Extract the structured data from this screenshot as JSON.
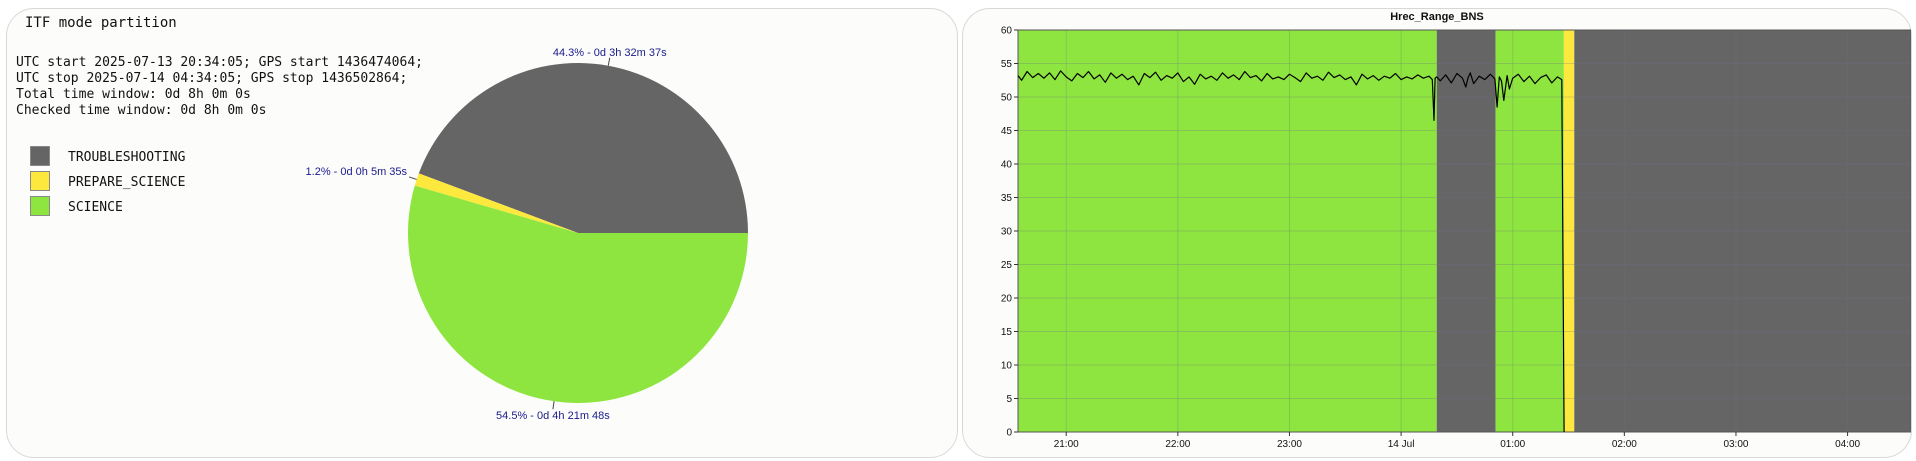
{
  "left_panel": {
    "title": "ITF mode partition",
    "info_lines": [
      "UTC start 2025-07-13 20:34:05; GPS start 1436474064;",
      "UTC stop 2025-07-14 04:34:05; GPS stop 1436502864;",
      "Total time window: 0d 8h 0m 0s",
      "Checked time window: 0d 8h 0m 0s"
    ],
    "legend": [
      {
        "label": "TROUBLESHOOTING",
        "color": "#666566"
      },
      {
        "label": "PREPARE_SCIENCE",
        "color": "#fde93d"
      },
      {
        "label": "SCIENCE",
        "color": "#8ee53f"
      }
    ]
  },
  "right_panel": {
    "title": "Hrec_Range_BNS"
  },
  "colors": {
    "troubleshooting": "#666566",
    "prepare_science": "#fde93d",
    "science": "#8ee53f",
    "slice_label": "#1a1a8c",
    "line": "#000000"
  },
  "chart_data": [
    {
      "type": "pie",
      "title": "ITF mode partition",
      "start_angle_deg": 0,
      "direction": "counterclockwise",
      "slices": [
        {
          "name": "TROUBLESHOOTING",
          "value": 44.3,
          "label": "44.3% - 0d 3h 32m 37s",
          "color": "#666566"
        },
        {
          "name": "PREPARE_SCIENCE",
          "value": 1.2,
          "label": "1.2% - 0d 0h 5m 35s",
          "color": "#fde93d"
        },
        {
          "name": "SCIENCE",
          "value": 54.5,
          "label": "54.5% - 0d 4h 21m 48s",
          "color": "#8ee53f"
        }
      ]
    },
    {
      "type": "line",
      "title": "Hrec_Range_BNS",
      "xlabel": "",
      "ylabel": "",
      "x_unit": "hours since 2025-07-13 00:00 UTC",
      "xlim": [
        20.5681,
        28.5681
      ],
      "ylim": [
        0,
        60
      ],
      "yticks": [
        0,
        5,
        10,
        15,
        20,
        25,
        30,
        35,
        40,
        45,
        50,
        55,
        60
      ],
      "xticks": [
        {
          "value": 21,
          "label": "21:00"
        },
        {
          "value": 22,
          "label": "22:00"
        },
        {
          "value": 23,
          "label": "23:00"
        },
        {
          "value": 24,
          "label": "14 Jul"
        },
        {
          "value": 25,
          "label": "01:00"
        },
        {
          "value": 26,
          "label": "02:00"
        },
        {
          "value": 27,
          "label": "03:00"
        },
        {
          "value": 28,
          "label": "04:00"
        }
      ],
      "grid": true,
      "mode_bands": [
        {
          "mode": "SCIENCE",
          "start": 20.5681,
          "end": 24.3194,
          "color": "#8ee53f"
        },
        {
          "mode": "TROUBLESHOOTING",
          "start": 24.3194,
          "end": 24.8472,
          "color": "#666566"
        },
        {
          "mode": "SCIENCE",
          "start": 24.8472,
          "end": 25.4583,
          "color": "#8ee53f"
        },
        {
          "mode": "PREPARE_SCIENCE",
          "start": 25.4583,
          "end": 25.5514,
          "color": "#fde93d"
        },
        {
          "mode": "TROUBLESHOOTING",
          "start": 25.5514,
          "end": 28.5681,
          "color": "#666566"
        }
      ],
      "series": [
        {
          "color": "#000000",
          "x": [
            20.568,
            20.6,
            20.65,
            20.7,
            20.75,
            20.8,
            20.85,
            20.9,
            20.95,
            21.0,
            21.05,
            21.1,
            21.15,
            21.2,
            21.25,
            21.3,
            21.35,
            21.4,
            21.45,
            21.5,
            21.55,
            21.6,
            21.65,
            21.7,
            21.75,
            21.8,
            21.85,
            21.9,
            21.95,
            22.0,
            22.05,
            22.1,
            22.15,
            22.2,
            22.25,
            22.3,
            22.35,
            22.4,
            22.45,
            22.5,
            22.55,
            22.6,
            22.65,
            22.7,
            22.75,
            22.8,
            22.85,
            22.9,
            22.95,
            23.0,
            23.05,
            23.1,
            23.15,
            23.2,
            23.25,
            23.3,
            23.35,
            23.4,
            23.45,
            23.5,
            23.55,
            23.6,
            23.65,
            23.7,
            23.75,
            23.8,
            23.85,
            23.9,
            23.95,
            24.0,
            24.05,
            24.1,
            24.15,
            24.2,
            24.25,
            24.28,
            24.295,
            24.305,
            24.32,
            24.35,
            24.4,
            24.45,
            24.5,
            24.55,
            24.58,
            24.6,
            24.62,
            24.65,
            24.7,
            24.75,
            24.8,
            24.84,
            24.86,
            24.88,
            24.9,
            24.92,
            24.95,
            24.97,
            25.0,
            25.05,
            25.1,
            25.15,
            25.2,
            25.25,
            25.3,
            25.35,
            25.4,
            25.44,
            25.46
          ],
          "y": [
            53.2,
            52.5,
            53.8,
            52.9,
            53.5,
            52.8,
            53.6,
            52.6,
            53.9,
            53.0,
            52.4,
            53.5,
            52.9,
            53.8,
            52.7,
            53.3,
            52.2,
            53.6,
            52.8,
            53.4,
            52.6,
            53.1,
            51.8,
            53.5,
            52.9,
            53.7,
            52.5,
            53.2,
            52.8,
            53.6,
            52.3,
            53.0,
            51.9,
            53.4,
            52.7,
            53.1,
            52.5,
            53.6,
            52.8,
            53.3,
            52.6,
            53.8,
            52.9,
            53.2,
            52.4,
            53.5,
            52.7,
            53.0,
            52.6,
            53.4,
            52.9,
            52.3,
            53.6,
            52.8,
            53.1,
            52.5,
            53.7,
            52.9,
            53.3,
            52.6,
            53.0,
            51.8,
            53.4,
            52.7,
            53.2,
            52.5,
            53.1,
            52.8,
            53.5,
            52.6,
            53.0,
            52.7,
            53.3,
            52.8,
            53.1,
            52.6,
            46.5,
            52.8,
            53.0,
            52.4,
            53.3,
            52.1,
            53.5,
            52.8,
            51.5,
            52.9,
            53.6,
            52.0,
            53.1,
            52.6,
            53.4,
            52.7,
            48.5,
            53.0,
            52.4,
            49.5,
            53.2,
            51.2,
            52.8,
            53.4,
            52.3,
            53.1,
            52.0,
            52.9,
            53.3,
            52.1,
            53.0,
            52.6,
            0
          ]
        }
      ]
    }
  ]
}
